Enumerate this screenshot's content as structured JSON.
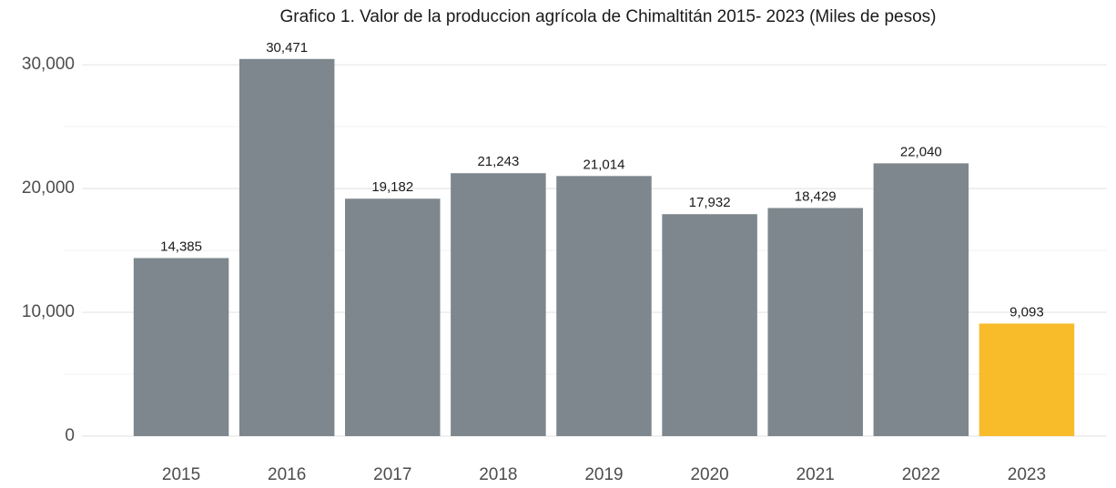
{
  "chart_data": {
    "type": "bar",
    "title": "Grafico 1. Valor de la produccion agrícola de Chimaltitán 2015- 2023 (Miles de pesos)",
    "categories": [
      "2015",
      "2016",
      "2017",
      "2018",
      "2019",
      "2020",
      "2021",
      "2022",
      "2023"
    ],
    "values": [
      14385,
      30471,
      19182,
      21243,
      21014,
      17932,
      18429,
      22040,
      9093
    ],
    "value_labels": [
      "14,385",
      "30,471",
      "19,182",
      "21,243",
      "21,014",
      "17,932",
      "18,429",
      "22,040",
      "9,093"
    ],
    "colors": [
      "#7d878d",
      "#7d878d",
      "#7d878d",
      "#7d878d",
      "#7d878d",
      "#7d878d",
      "#7d878d",
      "#7d878d",
      "#f8bb2a"
    ],
    "ylim": [
      0,
      32000
    ],
    "yticks": [
      0,
      {
        "value": 10000,
        "label": "10,000"
      },
      {
        "value": 20000,
        "label": "20,000"
      },
      {
        "value": 30000,
        "label": "30,000"
      }
    ],
    "minor_yticks": [
      5000,
      15000,
      25000
    ],
    "grid": true
  }
}
